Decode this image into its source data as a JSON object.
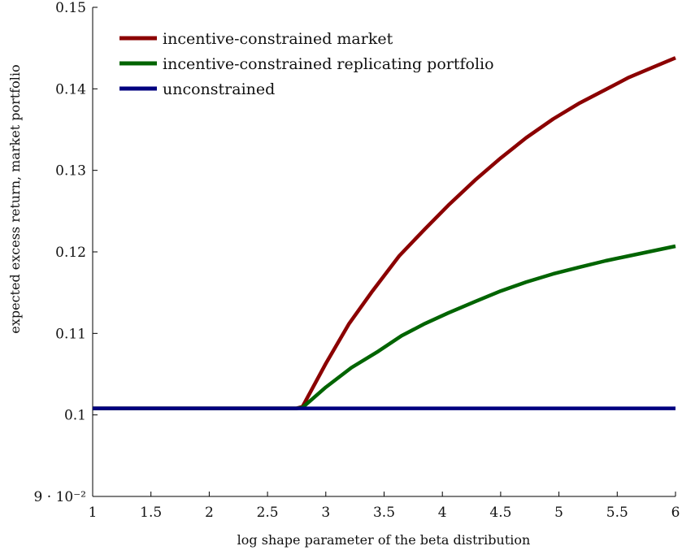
{
  "chart_data": {
    "type": "line",
    "xlabel": "log shape parameter of the beta distribution",
    "ylabel": "expected excess return, market portfolio",
    "xlim": [
      1,
      6
    ],
    "ylim": [
      0.09,
      0.15
    ],
    "x_ticks": [
      1,
      1.5,
      2,
      2.5,
      3,
      3.5,
      4,
      4.5,
      5,
      5.5,
      6
    ],
    "x_tick_labels": [
      "1",
      "1.5",
      "2",
      "2.5",
      "3",
      "3.5",
      "4",
      "4.5",
      "5",
      "5.5",
      "6"
    ],
    "y_ticks": [
      0.09,
      0.1,
      0.11,
      0.12,
      0.13,
      0.14,
      0.15
    ],
    "y_tick_labels": [
      "9 · 10⁻²",
      "0.1",
      "0.11",
      "0.12",
      "0.13",
      "0.14",
      "0.15"
    ],
    "grid": false,
    "legend_position": "top-left",
    "series": [
      {
        "name": "incentive-constrained market",
        "color": "#8b0000",
        "x": [
          1,
          1.5,
          2,
          2.5,
          2.75,
          2.8,
          3.0,
          3.2,
          3.4,
          3.63,
          3.85,
          4.05,
          4.28,
          4.5,
          4.72,
          4.95,
          5.17,
          5.4,
          5.6,
          5.8,
          6.0
        ],
        "y": [
          0.1008,
          0.1008,
          0.1008,
          0.1008,
          0.1008,
          0.101,
          0.1063,
          0.1112,
          0.1152,
          0.1195,
          0.1228,
          0.1257,
          0.1288,
          0.1315,
          0.134,
          0.1363,
          0.1382,
          0.1399,
          0.1414,
          0.1426,
          0.1438
        ]
      },
      {
        "name": "incentive-constrained replicating portfolio",
        "color": "#006400",
        "x": [
          1,
          1.5,
          2,
          2.5,
          2.75,
          2.8,
          3.0,
          3.22,
          3.45,
          3.65,
          3.85,
          4.05,
          4.28,
          4.5,
          4.72,
          4.95,
          5.17,
          5.4,
          5.6,
          5.8,
          6.0
        ],
        "y": [
          0.1008,
          0.1008,
          0.1008,
          0.1008,
          0.1008,
          0.1009,
          0.1034,
          0.1058,
          0.1078,
          0.1097,
          0.1112,
          0.1125,
          0.1139,
          0.1152,
          0.1163,
          0.1173,
          0.1181,
          0.1189,
          0.1195,
          0.1201,
          0.1207
        ]
      },
      {
        "name": "unconstrained",
        "color": "#00007f",
        "x": [
          1,
          6
        ],
        "y": [
          0.1008,
          0.1008
        ]
      }
    ]
  }
}
